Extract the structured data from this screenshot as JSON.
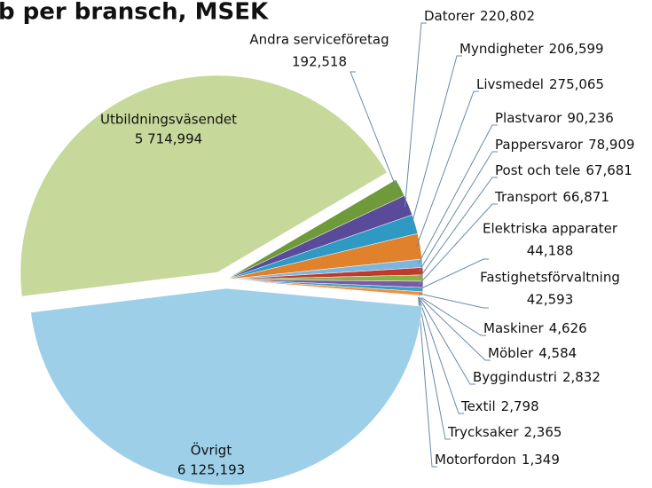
{
  "chart_data": {
    "type": "pie",
    "title": "b per bransch, MSEK",
    "categories": [
      "Utbildningsväsendet",
      "Andra serviceföretag",
      "Datorer",
      "Myndigheter",
      "Livsmedel",
      "Plastvaror",
      "Pappersvaror",
      "Post och tele",
      "Transport",
      "Elektriska apparater",
      "Fastighetsförvaltning",
      "Maskiner",
      "Möbler",
      "Byggindustri",
      "Textil",
      "Trycksaker",
      "Motorfordon",
      "Övrigt"
    ],
    "values": [
      5714.994,
      192.518,
      220.802,
      206.599,
      275.065,
      90.236,
      78.909,
      67.681,
      66.871,
      44.188,
      42.593,
      4.626,
      4.584,
      2.832,
      2.798,
      2.365,
      1.349,
      6125.193
    ],
    "value_labels": [
      "5 714,994",
      "192,518",
      "220,802",
      "206,599",
      "275,065",
      "90,236",
      "78,909",
      "67,681",
      "66,871",
      "44,188",
      "42,593",
      "4,626",
      "4,584",
      "2,832",
      "2,798",
      "2,365",
      "1,349",
      "6 125,193"
    ],
    "colors": [
      "#c6d89a",
      "#6f9a3a",
      "#5a4a9a",
      "#2e9ac4",
      "#e0812c",
      "#7ab6e0",
      "#c0392b",
      "#8ab04a",
      "#7a5aa8",
      "#3aa0c0",
      "#f09040",
      "#9ab8e0",
      "#d05050",
      "#a8c870",
      "#9a80c0",
      "#60b8d0",
      "#f0a860",
      "#9dd0e8"
    ]
  }
}
